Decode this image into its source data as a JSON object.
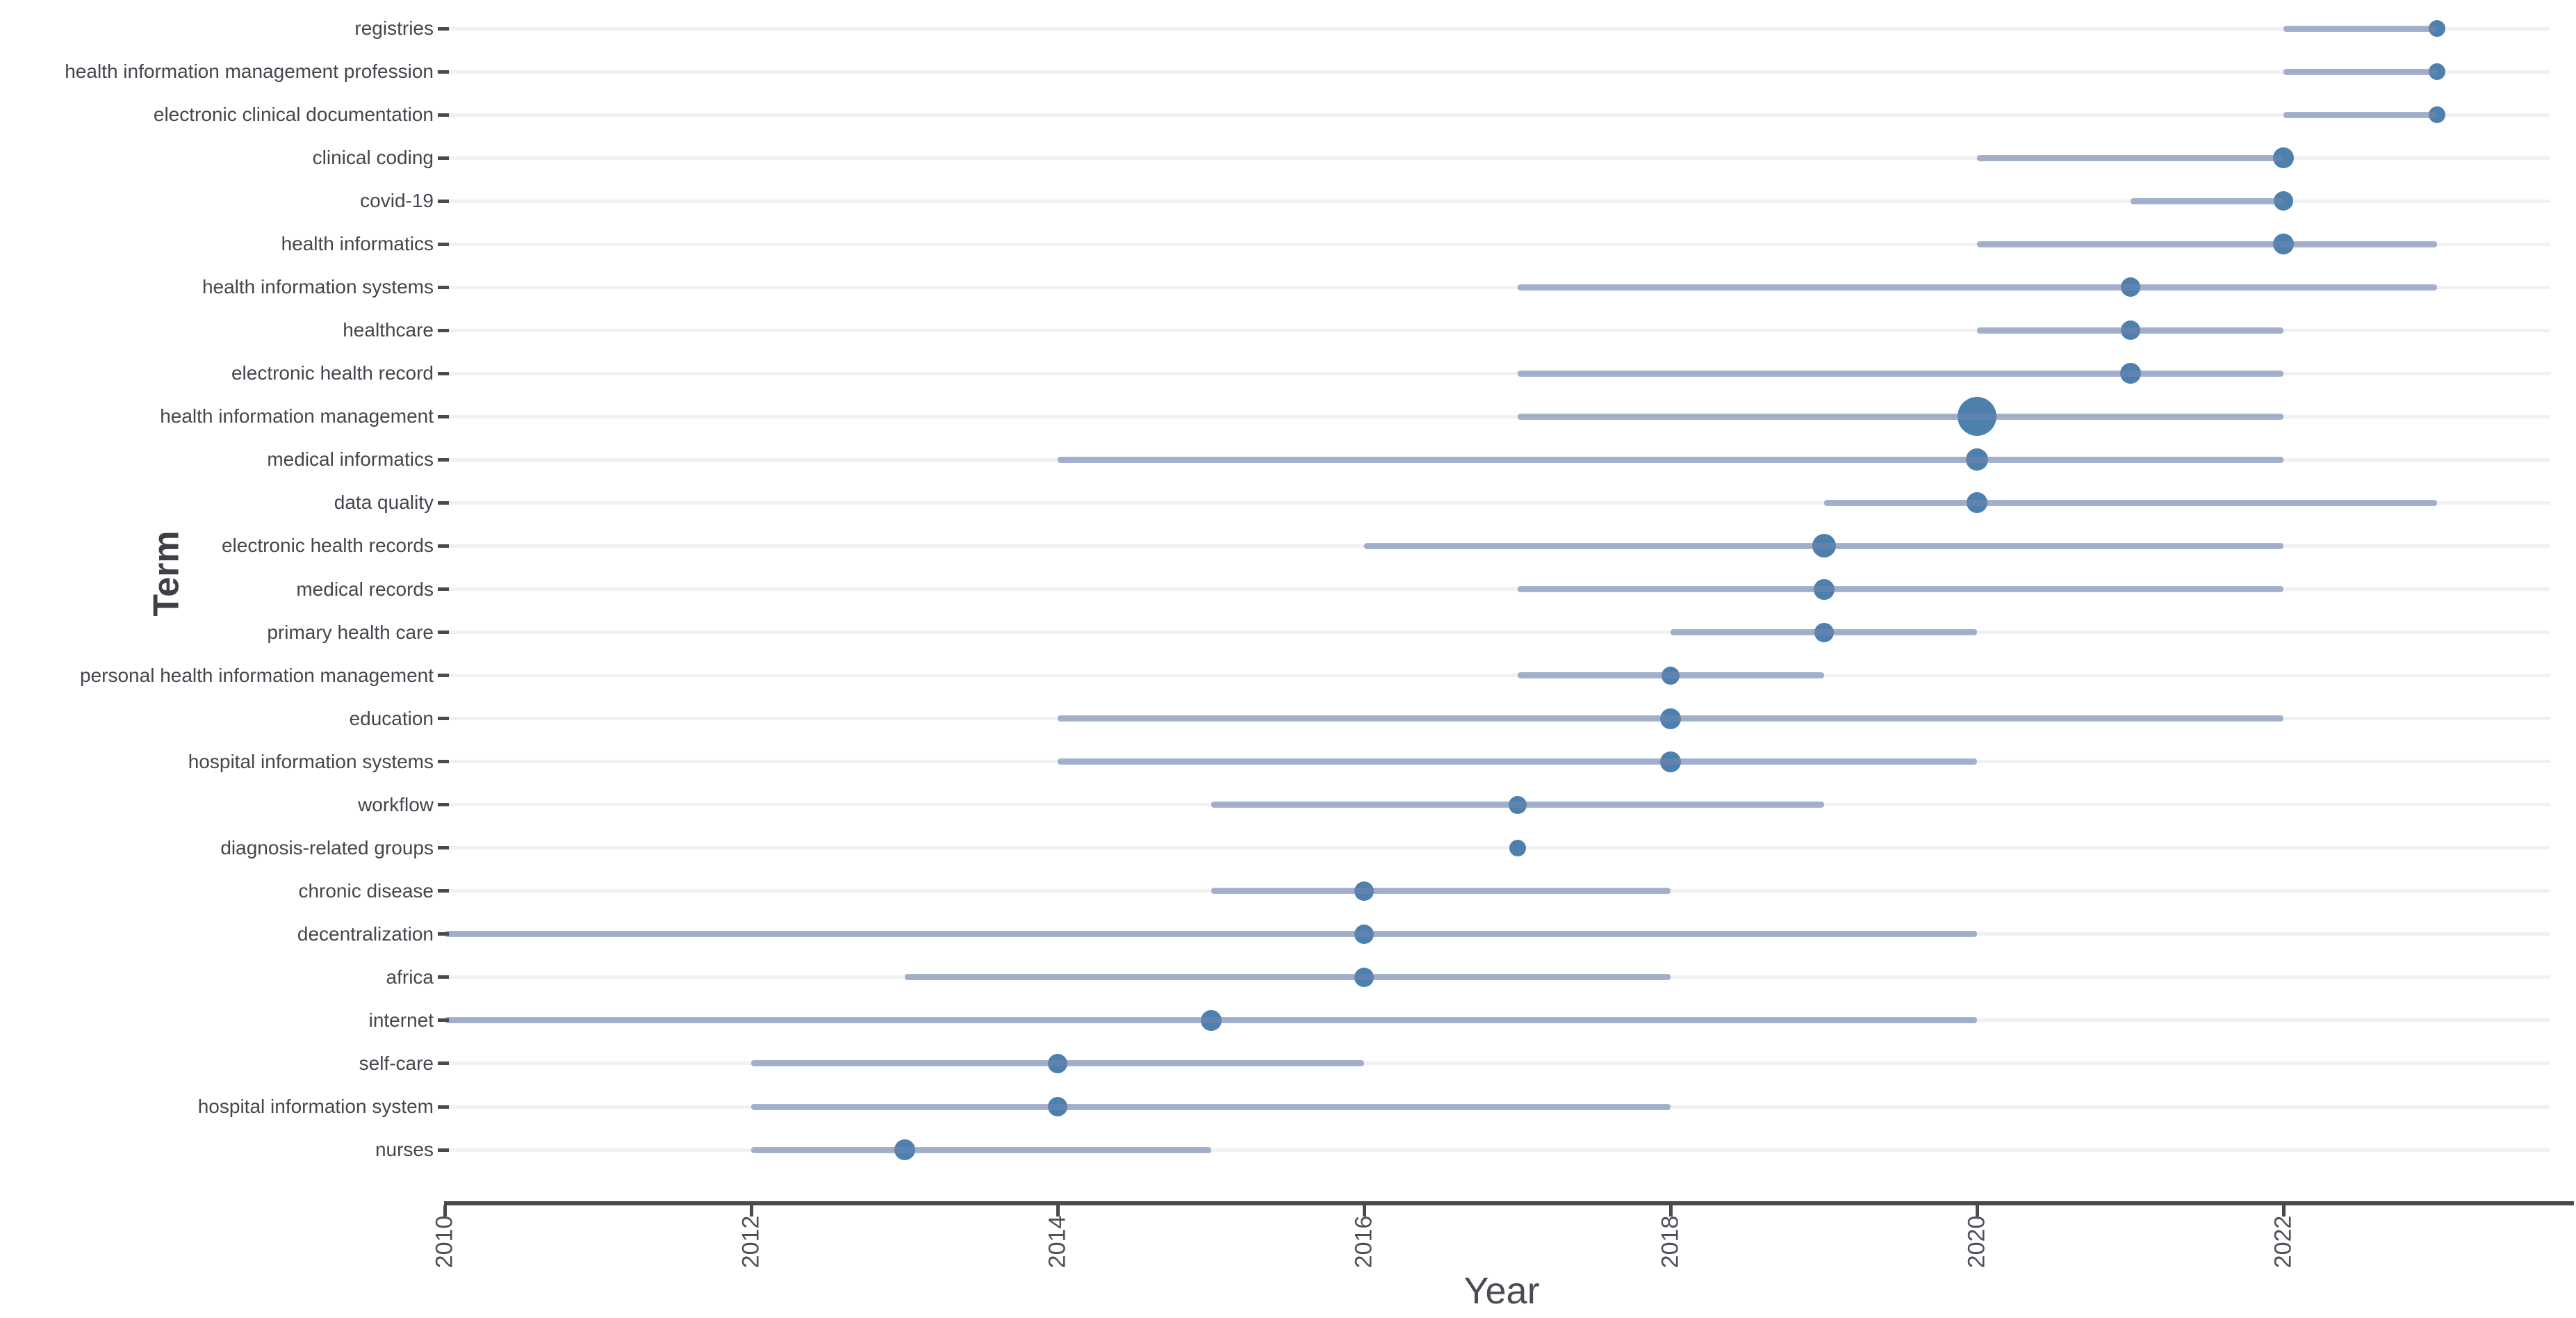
{
  "chart_data": {
    "type": "scatter",
    "variant": "dot-range-timeline",
    "title": "",
    "xlabel": "Year",
    "ylabel": "Term",
    "grid": "horizontal-only",
    "legend": "none",
    "x_axis": {
      "tick_labels": [
        "2010",
        "2012",
        "2014",
        "2016",
        "2018",
        "2020",
        "2022"
      ],
      "tick_years": [
        2010,
        2012,
        2014,
        2016,
        2018,
        2020,
        2022
      ],
      "min_year": 2010,
      "max_year": 2023.8,
      "tick_label_rotation_deg": 90
    },
    "rows": [
      {
        "term": "registries",
        "range_start": 2022,
        "range_end": 2023,
        "dot_year": 2023,
        "dot_size": 24
      },
      {
        "term": "health information management profession",
        "range_start": 2022,
        "range_end": 2023,
        "dot_year": 2023,
        "dot_size": 24
      },
      {
        "term": "electronic clinical documentation",
        "range_start": 2022,
        "range_end": 2023,
        "dot_year": 2023,
        "dot_size": 24
      },
      {
        "term": "clinical coding",
        "range_start": 2020,
        "range_end": 2022,
        "dot_year": 2022,
        "dot_size": 30
      },
      {
        "term": "covid-19",
        "range_start": 2021,
        "range_end": 2022,
        "dot_year": 2022,
        "dot_size": 28
      },
      {
        "term": "health informatics",
        "range_start": 2020,
        "range_end": 2023,
        "dot_year": 2022,
        "dot_size": 30
      },
      {
        "term": "health information systems",
        "range_start": 2017,
        "range_end": 2023,
        "dot_year": 2021,
        "dot_size": 28
      },
      {
        "term": "healthcare",
        "range_start": 2020,
        "range_end": 2022,
        "dot_year": 2021,
        "dot_size": 28
      },
      {
        "term": "electronic health record",
        "range_start": 2017,
        "range_end": 2022,
        "dot_year": 2021,
        "dot_size": 30
      },
      {
        "term": "health information management",
        "range_start": 2017,
        "range_end": 2022,
        "dot_year": 2020,
        "dot_size": 56
      },
      {
        "term": "medical informatics",
        "range_start": 2014,
        "range_end": 2022,
        "dot_year": 2020,
        "dot_size": 32
      },
      {
        "term": "data quality",
        "range_start": 2019,
        "range_end": 2023,
        "dot_year": 2020,
        "dot_size": 30
      },
      {
        "term": "electronic health records",
        "range_start": 2016,
        "range_end": 2022,
        "dot_year": 2019,
        "dot_size": 34
      },
      {
        "term": "medical records",
        "range_start": 2017,
        "range_end": 2022,
        "dot_year": 2019,
        "dot_size": 30
      },
      {
        "term": "primary health care",
        "range_start": 2018,
        "range_end": 2020,
        "dot_year": 2019,
        "dot_size": 28
      },
      {
        "term": "personal health information management",
        "range_start": 2017,
        "range_end": 2019,
        "dot_year": 2018,
        "dot_size": 26
      },
      {
        "term": "education",
        "range_start": 2014,
        "range_end": 2022,
        "dot_year": 2018,
        "dot_size": 30
      },
      {
        "term": "hospital information systems",
        "range_start": 2014,
        "range_end": 2020,
        "dot_year": 2018,
        "dot_size": 30
      },
      {
        "term": "workflow",
        "range_start": 2015,
        "range_end": 2019,
        "dot_year": 2017,
        "dot_size": 26
      },
      {
        "term": "diagnosis-related groups",
        "range_start": 2017,
        "range_end": 2017,
        "dot_year": 2017,
        "dot_size": 24
      },
      {
        "term": "chronic disease",
        "range_start": 2015,
        "range_end": 2018,
        "dot_year": 2016,
        "dot_size": 28
      },
      {
        "term": "decentralization",
        "range_start": 2010,
        "range_end": 2020,
        "dot_year": 2016,
        "dot_size": 28
      },
      {
        "term": "africa",
        "range_start": 2013,
        "range_end": 2018,
        "dot_year": 2016,
        "dot_size": 28
      },
      {
        "term": "internet",
        "range_start": 2010,
        "range_end": 2020,
        "dot_year": 2015,
        "dot_size": 30
      },
      {
        "term": "self-care",
        "range_start": 2012,
        "range_end": 2016,
        "dot_year": 2014,
        "dot_size": 28
      },
      {
        "term": "hospital information system",
        "range_start": 2012,
        "range_end": 2018,
        "dot_year": 2014,
        "dot_size": 28
      },
      {
        "term": "nurses",
        "range_start": 2012,
        "range_end": 2015,
        "dot_year": 2013,
        "dot_size": 30
      }
    ],
    "colors": {
      "dot_fill": "#4e80ae",
      "range_line": "#a5b3cf",
      "gridline": "#f1f1f1",
      "axis": "#4a4a4a",
      "tick_label_text": "#4f4f58",
      "y_label_text": "#45454d",
      "axis_title_text": "#3f3f46",
      "background": "#ffffff"
    }
  }
}
